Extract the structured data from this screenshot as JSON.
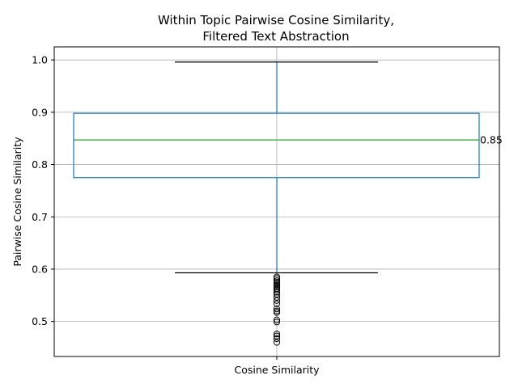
{
  "chart_data": {
    "type": "box",
    "title_lines": [
      "Within Topic Pairwise Cosine Similarity,",
      "Filtered Text Abstraction"
    ],
    "xlabel": "",
    "ylabel": "Pairwise Cosine Similarity",
    "categories": [
      "Cosine Similarity"
    ],
    "ylim": [
      0.433,
      1.025
    ],
    "yticks": [
      0.5,
      0.6,
      0.7,
      0.8,
      0.9,
      1.0
    ],
    "ytick_labels": [
      "0.5",
      "0.6",
      "0.7",
      "0.8",
      "0.9",
      "1.0"
    ],
    "grid": true,
    "box": {
      "q1": 0.775,
      "median": 0.847,
      "q3": 0.898,
      "whisker_low": 0.593,
      "whisker_high": 0.996,
      "outliers": [
        0.585,
        0.582,
        0.578,
        0.575,
        0.572,
        0.569,
        0.566,
        0.563,
        0.56,
        0.556,
        0.552,
        0.546,
        0.54,
        0.534,
        0.524,
        0.52,
        0.517,
        0.503,
        0.499,
        0.476,
        0.472,
        0.467,
        0.46
      ]
    },
    "annotation": {
      "text": "0.85",
      "y": 0.847
    },
    "colors": {
      "box": "#1f77b4",
      "median": "#2ca02c",
      "whisker_cap": "#000000",
      "grid": "#b0b0b0",
      "axis": "#000000",
      "flier": "#000000"
    }
  }
}
